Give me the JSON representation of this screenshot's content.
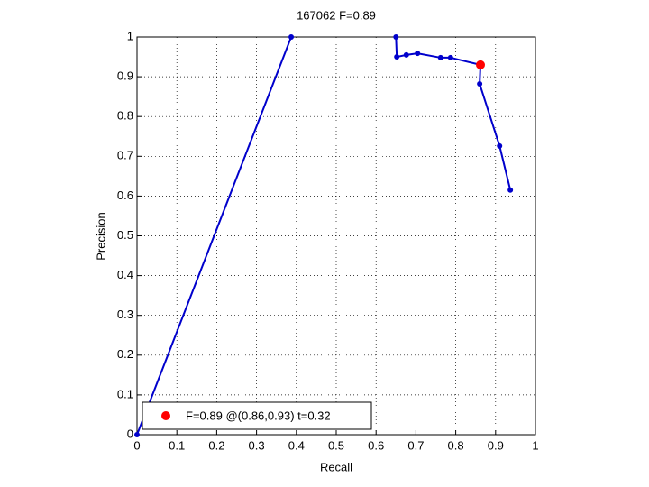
{
  "chart_data": {
    "type": "line",
    "title": "167062 F=0.89",
    "x_label": "Recall",
    "y_label": "Precision",
    "xlim": [
      0,
      1
    ],
    "ylim": [
      0,
      1
    ],
    "xticks": [
      0,
      0.1,
      0.2,
      0.3,
      0.4,
      0.5,
      0.6,
      0.7,
      0.8,
      0.9,
      1
    ],
    "yticks": [
      0,
      0.1,
      0.2,
      0.3,
      0.4,
      0.5,
      0.6,
      0.7,
      0.8,
      0.9,
      1
    ],
    "grid": true,
    "legend": "lower left",
    "series": [
      {
        "color": "#0000cc",
        "x": [
          0,
          0.387
        ],
        "values": [
          0,
          1
        ]
      },
      {
        "color": "#0000cc",
        "x": [
          0.65,
          0.652,
          0.676,
          0.704,
          0.762,
          0.787,
          0.862,
          0.86,
          0.91,
          0.937
        ],
        "values": [
          1,
          0.95,
          0.955,
          0.959,
          0.948,
          0.948,
          0.93,
          0.882,
          0.726,
          0.615
        ]
      },
      {
        "name": "F=0.89 @(0.86,0.93) t=0.32",
        "color": "#ff0000",
        "marker_only": true,
        "x": [
          0.862
        ],
        "values": [
          0.93
        ]
      }
    ]
  }
}
